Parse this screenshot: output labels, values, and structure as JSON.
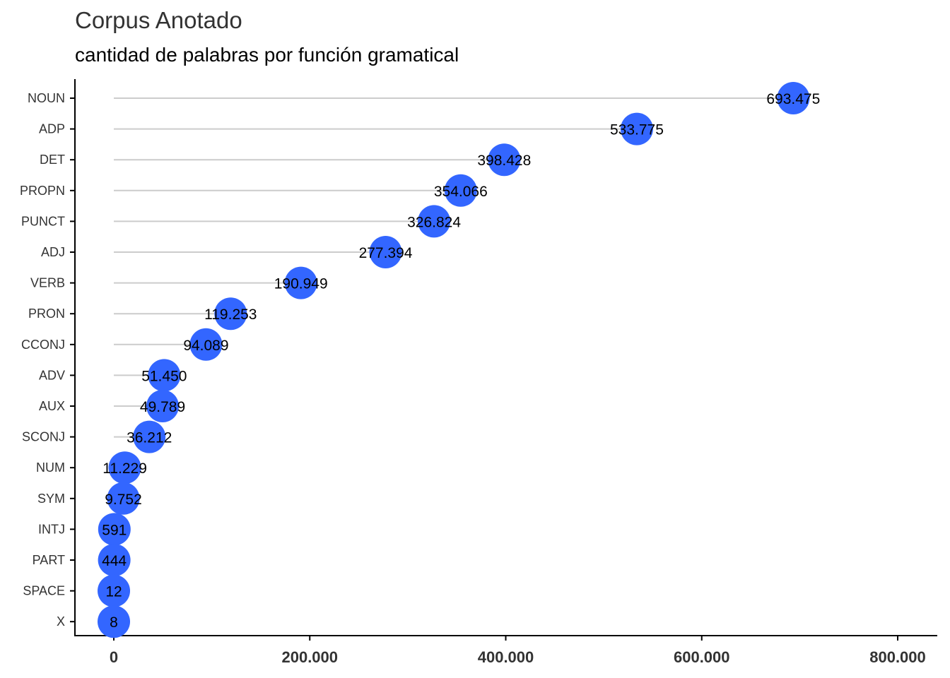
{
  "chart_data": {
    "type": "lollipop",
    "title": "Corpus Anotado",
    "subtitle": "cantidad de palabras por función gramatical",
    "xlabel": "",
    "ylabel": "",
    "xlim": [
      0,
      800000
    ],
    "x_ticks": [
      0,
      200000,
      400000,
      600000,
      800000
    ],
    "x_tick_labels": [
      "0",
      "200.000",
      "400.000",
      "600.000",
      "800.000"
    ],
    "grid": false,
    "colors": {
      "point": "#3366FF",
      "stem": "#CCCCCC",
      "axis": "#000000"
    },
    "categories": [
      "NOUN",
      "ADP",
      "DET",
      "PROPN",
      "PUNCT",
      "ADJ",
      "VERB",
      "PRON",
      "CCONJ",
      "ADV",
      "AUX",
      "SCONJ",
      "NUM",
      "SYM",
      "INTJ",
      "PART",
      "SPACE",
      "X"
    ],
    "values": [
      693475,
      533775,
      398428,
      354066,
      326824,
      277394,
      190949,
      119253,
      94089,
      51450,
      49789,
      36212,
      11229,
      9752,
      591,
      444,
      12,
      8
    ],
    "value_labels": [
      "693.475",
      "533.775",
      "398.428",
      "354.066",
      "326.824",
      "277.394",
      "190.949",
      "119.253",
      "94.089",
      "51.450",
      "49.789",
      "36.212",
      "11.229",
      "9.752",
      "591",
      "444",
      "12",
      "8"
    ]
  }
}
